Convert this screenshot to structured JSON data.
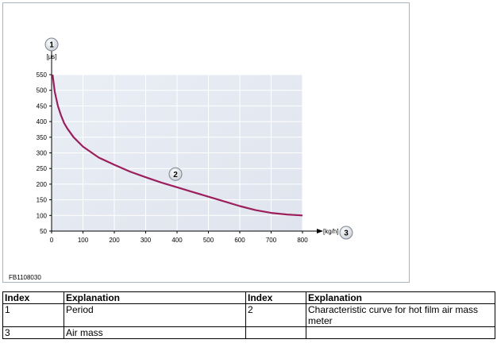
{
  "figure_id": "FB1108030",
  "chart_data": {
    "type": "line",
    "ylabel": "[µs]",
    "xlabel": "[kg/h]",
    "xlim": [
      0,
      800
    ],
    "ylim": [
      50,
      550
    ],
    "x_ticks": [
      0,
      100,
      200,
      300,
      400,
      500,
      600,
      700,
      800
    ],
    "y_ticks": [
      50,
      100,
      150,
      200,
      250,
      300,
      350,
      400,
      450,
      500,
      550
    ],
    "grid": true,
    "series": [
      {
        "color": "#9b1f5c",
        "x": [
          3,
          10,
          20,
          30,
          40,
          50,
          70,
          100,
          150,
          200,
          250,
          300,
          350,
          400,
          450,
          500,
          550,
          600,
          650,
          700,
          750,
          800
        ],
        "y": [
          550,
          495,
          450,
          420,
          395,
          378,
          350,
          320,
          285,
          262,
          240,
          222,
          205,
          190,
          175,
          160,
          145,
          130,
          117,
          108,
          103,
          100
        ]
      }
    ],
    "callouts": [
      {
        "label": "1",
        "target": "y-axis"
      },
      {
        "label": "2",
        "target": "curve",
        "x": 395,
        "y": 232
      },
      {
        "label": "3",
        "target": "x-axis"
      }
    ]
  },
  "legend_table": {
    "headers": [
      "Index",
      "Explanation",
      "Index",
      "Explanation"
    ],
    "rows": [
      [
        "1",
        "Period",
        "2",
        "Characteristic curve for hot film air mass meter"
      ],
      [
        "3",
        "Air mass",
        "",
        ""
      ]
    ]
  }
}
